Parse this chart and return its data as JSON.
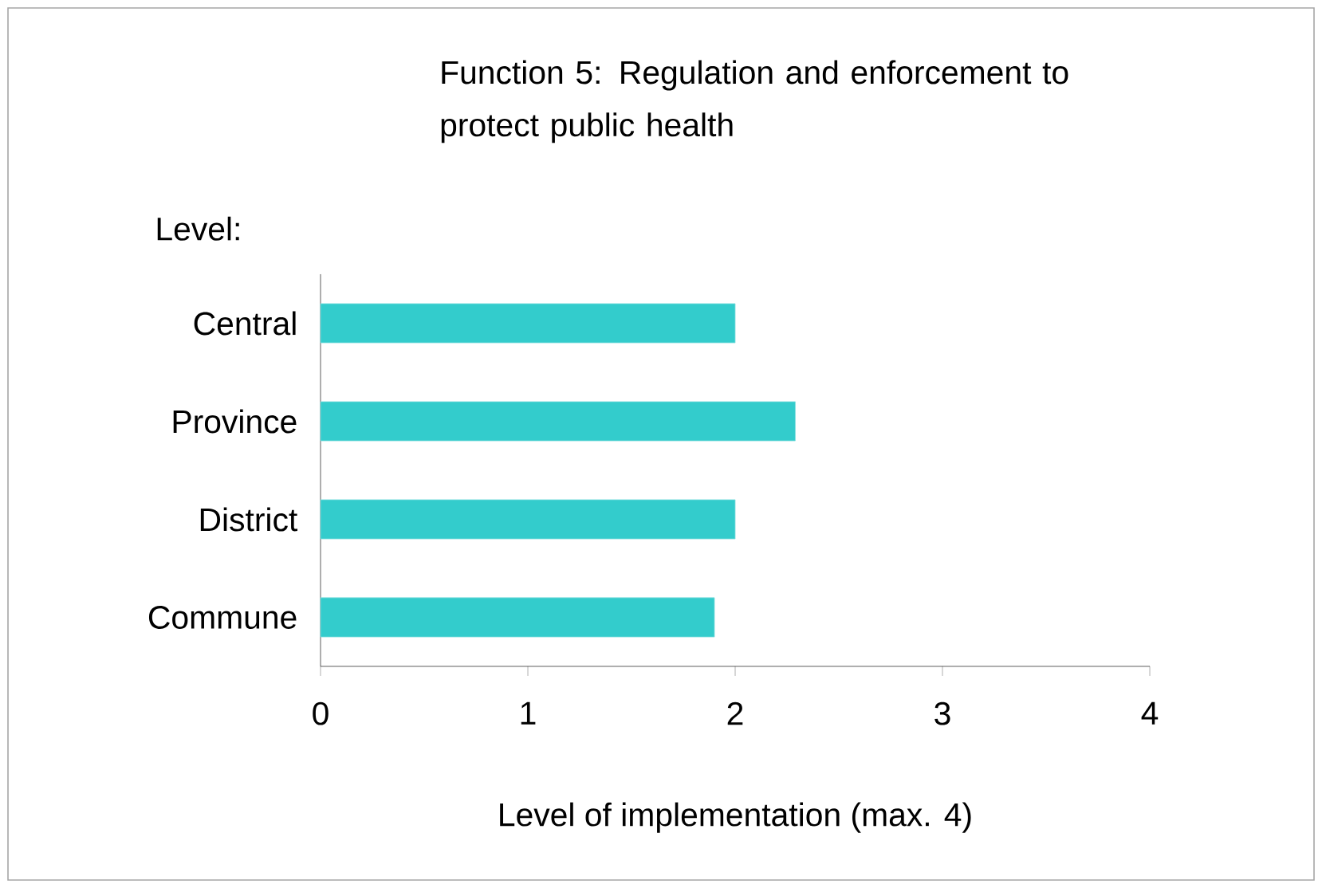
{
  "chart_data": {
    "type": "bar",
    "orientation": "horizontal",
    "title": "Function 5:  Regulation and enforcement to protect public health",
    "ylabel": "Level:",
    "xlabel": "Level of implementation (max. 4)",
    "categories": [
      "Central",
      "Province",
      "District",
      "Commune"
    ],
    "values": [
      2.0,
      2.29,
      2.0,
      1.9
    ],
    "color": "#33cccc",
    "xlim": [
      0,
      4
    ],
    "xticks": [
      0,
      1,
      2,
      3,
      4
    ],
    "grid": false
  }
}
